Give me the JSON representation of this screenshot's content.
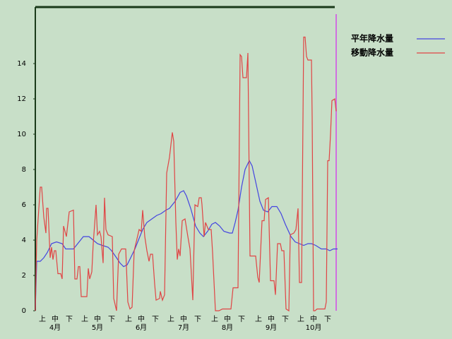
{
  "chart_data": {
    "type": "line",
    "legend_position": "top-right",
    "xlim": [
      0,
      214
    ],
    "ylim": [
      0,
      17.2
    ],
    "yticks": [
      0,
      2,
      4,
      6,
      8,
      10,
      12,
      14
    ],
    "xticks": [
      {
        "value": 5,
        "label": "上"
      },
      {
        "value": 14,
        "label": "中"
      },
      {
        "value": 24,
        "label": "下"
      },
      {
        "value": 35,
        "label": "上"
      },
      {
        "value": 44,
        "label": "中"
      },
      {
        "value": 54,
        "label": "下"
      },
      {
        "value": 66,
        "label": "上"
      },
      {
        "value": 75,
        "label": "中"
      },
      {
        "value": 85,
        "label": "下"
      },
      {
        "value": 96,
        "label": "上"
      },
      {
        "value": 105,
        "label": "中"
      },
      {
        "value": 115,
        "label": "下"
      },
      {
        "value": 127,
        "label": "上"
      },
      {
        "value": 136,
        "label": "中"
      },
      {
        "value": 146,
        "label": "下"
      },
      {
        "value": 158,
        "label": "上"
      },
      {
        "value": 167,
        "label": "中"
      },
      {
        "value": 177,
        "label": "下"
      },
      {
        "value": 188,
        "label": "上"
      },
      {
        "value": 197,
        "label": "中"
      },
      {
        "value": 207,
        "label": "下"
      }
    ],
    "month_ticks": [
      {
        "value": 14,
        "label": "4月"
      },
      {
        "value": 44,
        "label": "5月"
      },
      {
        "value": 75,
        "label": "6月"
      },
      {
        "value": 105,
        "label": "7月"
      },
      {
        "value": 136,
        "label": "8月"
      },
      {
        "value": 167,
        "label": "9月"
      },
      {
        "value": 197,
        "label": "10月"
      }
    ],
    "marker_x": 213,
    "marker_color": "#d070e0",
    "series": [
      {
        "name": "平年降水量",
        "color": "#4444e0",
        "x": [
          0,
          1,
          3.5,
          6,
          8.5,
          11.5,
          15,
          19,
          21.5,
          27,
          30,
          34,
          38,
          41,
          44,
          47.5,
          51.5,
          54,
          57.5,
          60,
          62.5,
          65,
          67.5,
          70.5,
          73,
          76,
          79,
          82.5,
          86,
          89,
          92.5,
          95,
          99,
          102.5,
          105,
          107,
          110,
          113.5,
          116.5,
          119,
          122,
          125,
          127.5,
          130.5,
          133.5,
          137.5,
          139.5,
          141.5,
          143.5,
          146,
          148.5,
          151.5,
          153.5,
          156,
          159,
          161.5,
          164.5,
          167.5,
          171,
          174,
          177,
          181,
          184,
          187,
          190,
          193,
          195.5,
          198.5,
          202.5,
          206,
          208.5,
          211,
          214
        ],
        "values": [
          0,
          2.8,
          2.8,
          3,
          3.3,
          3.8,
          3.9,
          3.8,
          3.5,
          3.5,
          3.8,
          4.2,
          4.2,
          4,
          3.8,
          3.7,
          3.6,
          3.4,
          3,
          2.7,
          2.5,
          2.6,
          3,
          3.5,
          4,
          4.6,
          5,
          5.2,
          5.4,
          5.5,
          5.7,
          5.8,
          6.2,
          6.7,
          6.8,
          6.5,
          5.8,
          4.8,
          4.4,
          4.2,
          4.5,
          4.9,
          5,
          4.8,
          4.5,
          4.4,
          4.4,
          5,
          5.7,
          7,
          8,
          8.5,
          8.2,
          7.3,
          6.2,
          5.7,
          5.6,
          5.9,
          5.9,
          5.5,
          4.9,
          4.2,
          3.9,
          3.8,
          3.7,
          3.8,
          3.8,
          3.7,
          3.5,
          3.5,
          3.4,
          3.5,
          3.5
        ]
      },
      {
        "name": "移動降水量",
        "color": "#e04444",
        "x": [
          0,
          1,
          3.5,
          4.5,
          6,
          7.5,
          8,
          9,
          10.5,
          11.5,
          12.5,
          13.5,
          14.5,
          16,
          18,
          19,
          20,
          22,
          24,
          27,
          28,
          29.5,
          30.5,
          31.5,
          32.5,
          36.5,
          37.5,
          38.5,
          40,
          41,
          43,
          44,
          45.5,
          46.5,
          48,
          49,
          50,
          51.5,
          54.5,
          55.5,
          57.5,
          59,
          61,
          64,
          65.5,
          67,
          68.5,
          70,
          73.5,
          75,
          76,
          77.5,
          79,
          80.5,
          81.5,
          83,
          84.5,
          85.5,
          88,
          88.5,
          90,
          91.5,
          93,
          95,
          97,
          98,
          99.5,
          100.5,
          101.5,
          102.5,
          104,
          106,
          108,
          109.5,
          111.5,
          113,
          115,
          116,
          117.5,
          118,
          119.5,
          120.5,
          122.5,
          124.5,
          125.5,
          127.5,
          130,
          132.5,
          138.5,
          140,
          143.5,
          145,
          146,
          147,
          149.5,
          150.5,
          152,
          156,
          157.5,
          158.5,
          160.5,
          162,
          163,
          165,
          166.5,
          169,
          170,
          171.5,
          173.5,
          174.5,
          176,
          177.5,
          179.5,
          180.5,
          183,
          184.5,
          186,
          187,
          188.5,
          190,
          191,
          192,
          193,
          195.5,
          196,
          197,
          198,
          199.5,
          205,
          206,
          207,
          208,
          209,
          210,
          212,
          213
        ],
        "values": [
          0,
          4,
          7,
          7,
          5.3,
          4.4,
          5.8,
          5.8,
          3,
          3.6,
          2.9,
          3.4,
          3.4,
          2.1,
          2.1,
          1.8,
          4.8,
          4.2,
          5.6,
          5.7,
          1.8,
          1.8,
          2.5,
          2.5,
          0.8,
          0.8,
          2.4,
          1.8,
          2.2,
          3.8,
          6,
          4.3,
          4.5,
          4.2,
          2.7,
          6.4,
          4.6,
          4.3,
          4.2,
          0.7,
          0,
          3.2,
          3.5,
          3.5,
          0.5,
          0.1,
          0.2,
          3.4,
          4.6,
          4.5,
          5.7,
          4.2,
          3.4,
          2.8,
          3.2,
          3.2,
          1.5,
          0.6,
          0.7,
          1.1,
          0.6,
          0.9,
          7.8,
          8.7,
          10.1,
          9.6,
          5,
          2.9,
          3.5,
          3.1,
          5.1,
          5.2,
          4.2,
          3.5,
          0.6,
          6,
          5.9,
          6.4,
          6.4,
          6,
          4.2,
          5,
          4.6,
          4.6,
          3.3,
          0,
          0,
          0.1,
          0.1,
          1.3,
          1.3,
          14.5,
          14.4,
          13.2,
          13.2,
          14.6,
          3.1,
          3.1,
          1.9,
          1.6,
          5.1,
          5.1,
          6.3,
          6.4,
          1.7,
          1.7,
          0.9,
          3.8,
          3.8,
          3.4,
          3.4,
          0.1,
          0,
          4.3,
          4.4,
          4.6,
          5.8,
          1.6,
          1.6,
          15.5,
          15.5,
          14.4,
          14.2,
          14.2,
          11,
          0,
          0,
          0.1,
          0.1,
          0.5,
          8.5,
          8.5,
          10,
          11.9,
          12,
          11.3
        ]
      }
    ]
  }
}
